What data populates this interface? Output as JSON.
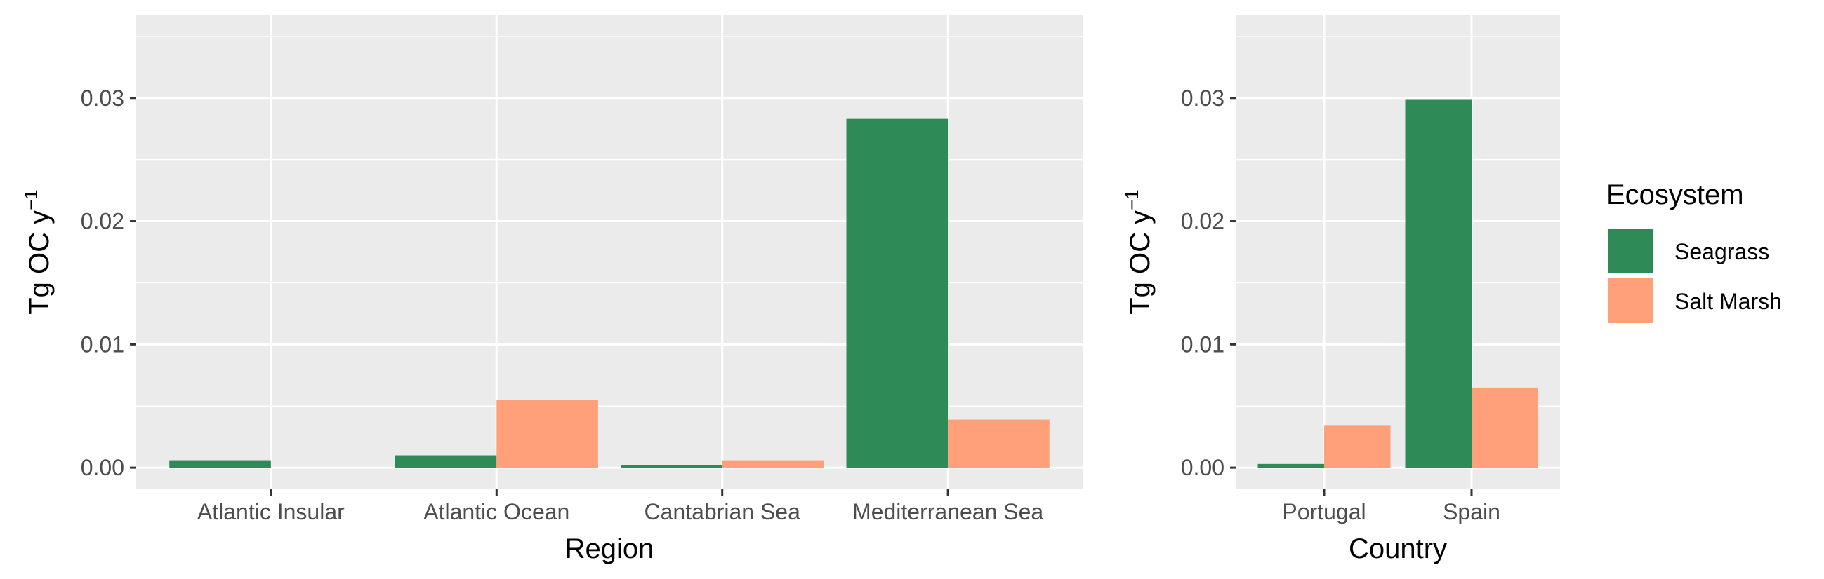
{
  "colors": {
    "panel_background": "#ebebeb",
    "grid": "#ffffff",
    "seagrass": "#2e8b57",
    "salt_marsh": "#ffa07a",
    "tick_text": "#4d4d4d",
    "axis_text": "#000000"
  },
  "legend": {
    "title": "Ecosystem",
    "items": [
      {
        "label": "Seagrass",
        "color": "#2e8b57"
      },
      {
        "label": "Salt Marsh",
        "color": "#ffa07a"
      }
    ]
  },
  "chart_data": [
    {
      "type": "bar",
      "xlabel": "Region",
      "ylabel": "Tg OC y",
      "ylabel_superscript": "−1",
      "ylim": [
        -0.0017,
        0.0367
      ],
      "yticks": [
        0.0,
        0.01,
        0.02,
        0.03
      ],
      "ytick_labels": [
        "0.00",
        "0.01",
        "0.02",
        "0.03"
      ],
      "grid": true,
      "categories": [
        "Atlantic Insular",
        "Atlantic Ocean",
        "Cantabrian Sea",
        "Mediterranean Sea"
      ],
      "series": [
        {
          "name": "Seagrass",
          "color": "#2e8b57",
          "values": [
            0.0006,
            0.001,
            0.0002,
            0.0283
          ]
        },
        {
          "name": "Salt Marsh",
          "color": "#ffa07a",
          "values": [
            0.0,
            0.0055,
            0.0006,
            0.0039
          ]
        }
      ]
    },
    {
      "type": "bar",
      "xlabel": "Country",
      "ylabel": "Tg OC y",
      "ylabel_superscript": "−1",
      "ylim": [
        -0.0017,
        0.0367
      ],
      "yticks": [
        0.0,
        0.01,
        0.02,
        0.03
      ],
      "ytick_labels": [
        "0.00",
        "0.01",
        "0.02",
        "0.03"
      ],
      "grid": true,
      "categories": [
        "Portugal",
        "Spain"
      ],
      "series": [
        {
          "name": "Seagrass",
          "color": "#2e8b57",
          "values": [
            0.0003,
            0.0299
          ]
        },
        {
          "name": "Salt Marsh",
          "color": "#ffa07a",
          "values": [
            0.0034,
            0.0065
          ]
        }
      ]
    }
  ]
}
